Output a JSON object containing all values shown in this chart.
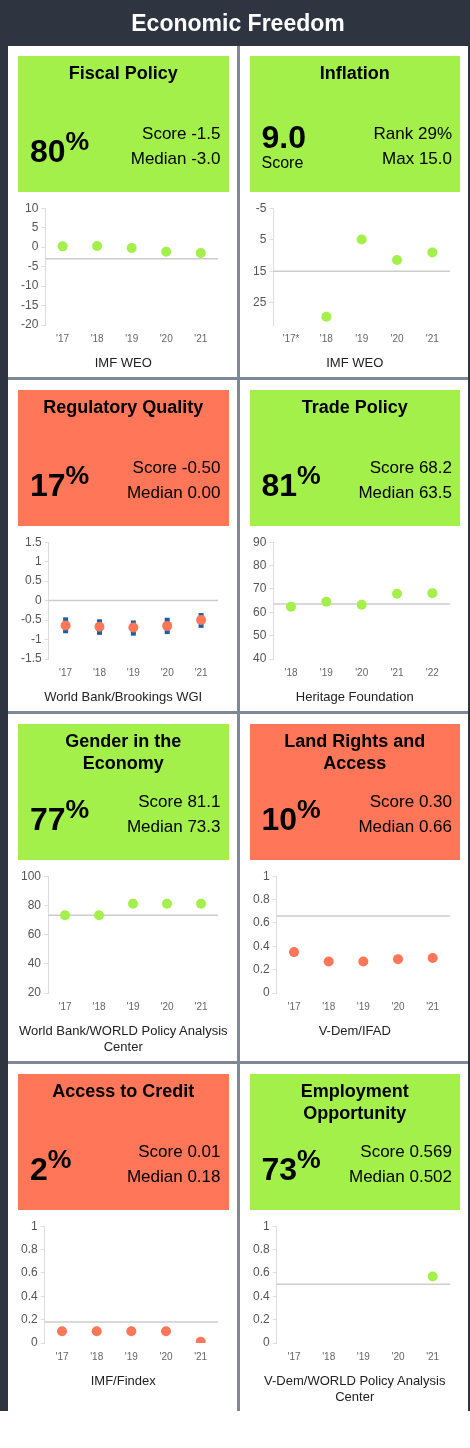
{
  "chart_data": [
    {
      "type": "other",
      "title": "Economic Freedom"
    },
    {
      "type": "scatter",
      "title": "Fiscal Policy",
      "annotations": [
        "80$^{%}$",
        "Score -1.5",
        "Median -3.0",
        "IMF WEO"
      ],
      "categories": [
        "'17",
        "'18",
        "'19",
        "'20",
        "'21"
      ],
      "marker": "circle",
      "series": [
        {
          "color": "#a3f04b",
          "values": [
            0.2,
            0.3,
            -0.2,
            -1.2,
            -1.5
          ]
        }
      ],
      "ylim": [
        -20,
        10
      ],
      "yticks": [
        -20,
        -15,
        -10,
        -5,
        0,
        5,
        10
      ],
      "grid": false,
      "ref_lines": [
        {
          "axis": "y",
          "value": -3.0,
          "color": "#cccccc"
        }
      ]
    },
    {
      "type": "scatter",
      "title": "Inflation",
      "subtitle": "Score",
      "annotations": [
        "9.0",
        "Rank 29%",
        "Max 15.0",
        "IMF WEO"
      ],
      "categories": [
        "'17*",
        "'18",
        "'19",
        "'20",
        "'21"
      ],
      "marker": "circle",
      "series": [
        {
          "color": "#a3f04b",
          "values": [
            null,
            29.4,
            4.9,
            11.4,
            9.0
          ]
        }
      ],
      "ylim": [
        32,
        -5
      ],
      "yticks": [
        -5,
        5,
        15,
        25
      ],
      "grid": false,
      "ref_lines": [
        {
          "axis": "y",
          "value": 15.0,
          "color": "#cccccc"
        }
      ]
    },
    {
      "type": "scatter",
      "title": "Regulatory Quality",
      "annotations": [
        "17$^{%}$",
        "Score -0.50",
        "Median 0.00",
        "World Bank/Brookings WGI"
      ],
      "categories": [
        "'17",
        "'18",
        "'19",
        "'20",
        "'21"
      ],
      "marker": "circle",
      "series": [
        {
          "color": "#ff7659",
          "values": [
            -0.64,
            -0.67,
            -0.69,
            -0.65,
            -0.5
          ],
          "errors": [
            [
              -0.84,
              -0.43
            ],
            [
              -0.88,
              -0.48
            ],
            [
              -0.9,
              -0.51
            ],
            [
              -0.86,
              -0.44
            ],
            [
              -0.7,
              -0.32
            ]
          ]
        }
      ],
      "ylim": [
        -1.5,
        1.5
      ],
      "yticks": [
        -1.5,
        -1,
        -0.5,
        0,
        0.5,
        1,
        1.5
      ],
      "grid": false,
      "ref_lines": [
        {
          "axis": "y",
          "value": 0,
          "color": "#cccccc"
        }
      ]
    },
    {
      "type": "scatter",
      "title": "Trade Policy",
      "annotations": [
        "81$^{%}$",
        "Score 68.2",
        "Median 63.5",
        "Heritage Foundation"
      ],
      "categories": [
        "'18",
        "'19",
        "'20",
        "'21",
        "'22"
      ],
      "marker": "circle",
      "series": [
        {
          "color": "#a3f04b",
          "values": [
            62.4,
            64.5,
            63.2,
            67.9,
            68.2
          ]
        }
      ],
      "ylim": [
        40,
        90
      ],
      "yticks": [
        40,
        50,
        60,
        70,
        80,
        90
      ],
      "grid": false,
      "ref_lines": [
        {
          "axis": "y",
          "value": 63.5,
          "color": "#cccccc"
        }
      ]
    },
    {
      "type": "scatter",
      "title": "Gender in the Economy",
      "annotations": [
        "77$^{%}$",
        "Score 81.1",
        "Median 73.3",
        "World Bank/WORLD Policy Analysis Center"
      ],
      "categories": [
        "'17",
        "'18",
        "'19",
        "'20",
        "'21"
      ],
      "marker": "circle",
      "series": [
        {
          "color": "#a3f04b",
          "values": [
            73.3,
            73.3,
            81.1,
            81.1,
            81.1
          ]
        }
      ],
      "ylim": [
        20,
        100
      ],
      "yticks": [
        20,
        40,
        60,
        80,
        100
      ],
      "grid": false,
      "ref_lines": [
        {
          "axis": "y",
          "value": 73.3,
          "color": "#cccccc"
        }
      ]
    },
    {
      "type": "scatter",
      "title": "Land Rights and Access",
      "annotations": [
        "10$^{%}$",
        "Score 0.30",
        "Median 0.66",
        "V-Dem/IFAD"
      ],
      "categories": [
        "'17",
        "'18",
        "'19",
        "'20",
        "'21"
      ],
      "marker": "circle",
      "series": [
        {
          "color": "#ff7659",
          "values": [
            0.35,
            0.27,
            0.27,
            0.29,
            0.3
          ]
        }
      ],
      "ylim": [
        0,
        1
      ],
      "yticks": [
        0,
        0.2,
        0.4,
        0.6,
        0.8,
        1
      ],
      "grid": false,
      "ref_lines": [
        {
          "axis": "y",
          "value": 0.66,
          "color": "#cccccc"
        }
      ]
    },
    {
      "type": "scatter",
      "title": "Access to Credit",
      "annotations": [
        "2$^{%}$",
        "Score 0.01",
        "Median 0.18",
        "IMF/Findex"
      ],
      "categories": [
        "'17",
        "'18",
        "'19",
        "'20",
        "'21"
      ],
      "marker": "circle",
      "series": [
        {
          "color": "#ff7659",
          "values": [
            0.1,
            0.1,
            0.1,
            0.1,
            0.01
          ]
        }
      ],
      "ylim": [
        0,
        1
      ],
      "yticks": [
        0,
        0.2,
        0.4,
        0.6,
        0.8,
        1
      ],
      "grid": false,
      "ref_lines": [
        {
          "axis": "y",
          "value": 0.18,
          "color": "#cccccc"
        }
      ]
    },
    {
      "type": "scatter",
      "title": "Employment Opportunity",
      "annotations": [
        "73$^{%}$",
        "Score 0.569",
        "Median 0.502",
        "V-Dem/WORLD Policy Analysis Center"
      ],
      "categories": [
        "'17",
        "'18",
        "'19",
        "'20",
        "'21"
      ],
      "marker": "circle",
      "series": [
        {
          "color": "#a3f04b",
          "values": [
            null,
            null,
            null,
            null,
            0.569
          ]
        }
      ],
      "ylim": [
        0,
        1
      ],
      "yticks": [
        0,
        0.2,
        0.4,
        0.6,
        0.8,
        1
      ],
      "grid": false,
      "ref_lines": [
        {
          "axis": "y",
          "value": 0.502,
          "color": "#cccccc"
        }
      ]
    }
  ]
}
